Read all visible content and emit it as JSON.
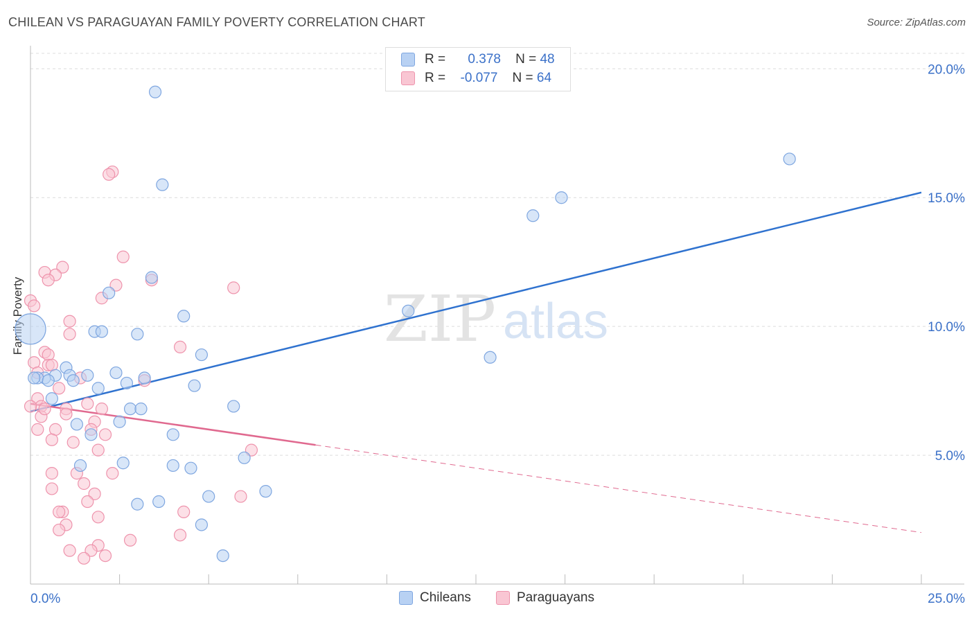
{
  "header": {
    "title": "CHILEAN VS PARAGUAYAN FAMILY POVERTY CORRELATION CHART",
    "source": "Source: ZipAtlas.com"
  },
  "watermark": {
    "zip": "ZIP",
    "atlas": "atlas"
  },
  "legend": {
    "r_label": "R =",
    "n_label": "N =",
    "chileans": {
      "r": "0.378",
      "n": "48"
    },
    "paraguayans": {
      "r": "-0.077",
      "n": "64"
    }
  },
  "bottom_legend": {
    "chileans": "Chileans",
    "paraguayans": "Paraguayans"
  },
  "colors": {
    "chileans_fill": "#b8d1f3",
    "chileans_stroke": "#7ea6e0",
    "chileans_line": "#2f72cf",
    "paraguayans_fill": "#f9c6d3",
    "paraguayans_stroke": "#ee93ac",
    "paraguayans_line": "#e0698f",
    "tick_label": "#3a70c8",
    "grid": "#dcdcdc"
  },
  "chart_data": {
    "type": "scatter",
    "title": "CHILEAN VS PARAGUAYAN FAMILY POVERTY CORRELATION CHART",
    "xlabel": "",
    "ylabel": "Family Poverty",
    "xlim": [
      0,
      25
    ],
    "ylim": [
      0,
      20.6
    ],
    "x_tick_labels": [
      "0.0%",
      "25.0%"
    ],
    "y_ticks": [
      5,
      10,
      15,
      20
    ],
    "y_tick_labels": [
      "5.0%",
      "10.0%",
      "15.0%",
      "20.0%"
    ],
    "grid": true,
    "series": [
      {
        "name": "Chileans",
        "trend": {
          "x": [
            0,
            25
          ],
          "y": [
            6.7,
            15.2
          ],
          "dashed_from": null
        },
        "points": [
          {
            "x": 0.0,
            "y": 9.9,
            "big": true
          },
          {
            "x": 3.5,
            "y": 19.1
          },
          {
            "x": 3.7,
            "y": 15.5
          },
          {
            "x": 21.3,
            "y": 16.5
          },
          {
            "x": 14.9,
            "y": 15.0
          },
          {
            "x": 14.1,
            "y": 14.3
          },
          {
            "x": 3.4,
            "y": 11.9
          },
          {
            "x": 2.2,
            "y": 11.3
          },
          {
            "x": 10.6,
            "y": 10.6
          },
          {
            "x": 4.3,
            "y": 10.4
          },
          {
            "x": 1.8,
            "y": 9.8
          },
          {
            "x": 2.0,
            "y": 9.8
          },
          {
            "x": 3.0,
            "y": 9.7
          },
          {
            "x": 4.8,
            "y": 8.9
          },
          {
            "x": 12.9,
            "y": 8.8
          },
          {
            "x": 1.0,
            "y": 8.4
          },
          {
            "x": 2.4,
            "y": 8.2
          },
          {
            "x": 1.6,
            "y": 8.1
          },
          {
            "x": 0.7,
            "y": 8.1
          },
          {
            "x": 1.1,
            "y": 8.1
          },
          {
            "x": 3.2,
            "y": 8.0
          },
          {
            "x": 0.4,
            "y": 8.0
          },
          {
            "x": 0.2,
            "y": 8.0
          },
          {
            "x": 1.2,
            "y": 7.9
          },
          {
            "x": 0.5,
            "y": 7.9
          },
          {
            "x": 2.7,
            "y": 7.8
          },
          {
            "x": 4.6,
            "y": 7.7
          },
          {
            "x": 1.9,
            "y": 7.6
          },
          {
            "x": 0.6,
            "y": 7.2
          },
          {
            "x": 5.7,
            "y": 6.9
          },
          {
            "x": 2.8,
            "y": 6.8
          },
          {
            "x": 3.1,
            "y": 6.8
          },
          {
            "x": 2.5,
            "y": 6.3
          },
          {
            "x": 1.3,
            "y": 6.2
          },
          {
            "x": 1.7,
            "y": 5.8
          },
          {
            "x": 4.0,
            "y": 5.8
          },
          {
            "x": 6.0,
            "y": 4.9
          },
          {
            "x": 2.6,
            "y": 4.7
          },
          {
            "x": 1.4,
            "y": 4.6
          },
          {
            "x": 4.0,
            "y": 4.6
          },
          {
            "x": 4.5,
            "y": 4.5
          },
          {
            "x": 6.6,
            "y": 3.6
          },
          {
            "x": 5.0,
            "y": 3.4
          },
          {
            "x": 3.6,
            "y": 3.2
          },
          {
            "x": 3.0,
            "y": 3.1
          },
          {
            "x": 4.8,
            "y": 2.3
          },
          {
            "x": 5.4,
            "y": 1.1
          },
          {
            "x": 0.1,
            "y": 8.0
          }
        ]
      },
      {
        "name": "Paraguayans",
        "trend": {
          "x": [
            0,
            25
          ],
          "y": [
            7.0,
            2.0
          ],
          "dashed_from": 8.0
        },
        "points": [
          {
            "x": 2.3,
            "y": 16.0
          },
          {
            "x": 2.2,
            "y": 15.9
          },
          {
            "x": 2.6,
            "y": 12.7
          },
          {
            "x": 0.9,
            "y": 12.3
          },
          {
            "x": 0.4,
            "y": 12.1
          },
          {
            "x": 0.7,
            "y": 12.0
          },
          {
            "x": 3.4,
            "y": 11.8
          },
          {
            "x": 0.5,
            "y": 11.8
          },
          {
            "x": 2.4,
            "y": 11.6
          },
          {
            "x": 5.7,
            "y": 11.5
          },
          {
            "x": 2.0,
            "y": 11.1
          },
          {
            "x": 0.0,
            "y": 11.0
          },
          {
            "x": 0.1,
            "y": 10.8
          },
          {
            "x": 1.1,
            "y": 10.2
          },
          {
            "x": 1.1,
            "y": 9.7
          },
          {
            "x": 4.2,
            "y": 9.2
          },
          {
            "x": 0.4,
            "y": 9.0
          },
          {
            "x": 0.5,
            "y": 8.9
          },
          {
            "x": 0.1,
            "y": 8.6
          },
          {
            "x": 0.5,
            "y": 8.5
          },
          {
            "x": 0.6,
            "y": 8.5
          },
          {
            "x": 0.2,
            "y": 8.2
          },
          {
            "x": 1.4,
            "y": 8.0
          },
          {
            "x": 3.2,
            "y": 7.9
          },
          {
            "x": 0.8,
            "y": 7.6
          },
          {
            "x": 0.2,
            "y": 7.2
          },
          {
            "x": 1.6,
            "y": 7.0
          },
          {
            "x": 0.3,
            "y": 6.9
          },
          {
            "x": 1.0,
            "y": 6.8
          },
          {
            "x": 2.0,
            "y": 6.8
          },
          {
            "x": 1.0,
            "y": 6.6
          },
          {
            "x": 0.3,
            "y": 6.5
          },
          {
            "x": 1.8,
            "y": 6.3
          },
          {
            "x": 1.7,
            "y": 6.0
          },
          {
            "x": 0.7,
            "y": 6.0
          },
          {
            "x": 0.2,
            "y": 6.0
          },
          {
            "x": 2.1,
            "y": 5.8
          },
          {
            "x": 0.6,
            "y": 5.6
          },
          {
            "x": 1.2,
            "y": 5.5
          },
          {
            "x": 1.9,
            "y": 5.2
          },
          {
            "x": 6.2,
            "y": 5.2
          },
          {
            "x": 1.3,
            "y": 4.3
          },
          {
            "x": 0.6,
            "y": 4.3
          },
          {
            "x": 2.3,
            "y": 4.3
          },
          {
            "x": 1.5,
            "y": 3.9
          },
          {
            "x": 0.6,
            "y": 3.7
          },
          {
            "x": 1.8,
            "y": 3.5
          },
          {
            "x": 5.9,
            "y": 3.4
          },
          {
            "x": 1.6,
            "y": 3.2
          },
          {
            "x": 0.9,
            "y": 2.8
          },
          {
            "x": 0.8,
            "y": 2.8
          },
          {
            "x": 4.3,
            "y": 2.8
          },
          {
            "x": 1.9,
            "y": 2.6
          },
          {
            "x": 1.0,
            "y": 2.3
          },
          {
            "x": 0.8,
            "y": 2.1
          },
          {
            "x": 4.2,
            "y": 1.9
          },
          {
            "x": 2.8,
            "y": 1.7
          },
          {
            "x": 1.9,
            "y": 1.5
          },
          {
            "x": 1.7,
            "y": 1.3
          },
          {
            "x": 1.1,
            "y": 1.3
          },
          {
            "x": 2.1,
            "y": 1.1
          },
          {
            "x": 1.5,
            "y": 1.0
          },
          {
            "x": 0.4,
            "y": 6.8
          },
          {
            "x": 0.0,
            "y": 6.9
          }
        ]
      }
    ]
  }
}
